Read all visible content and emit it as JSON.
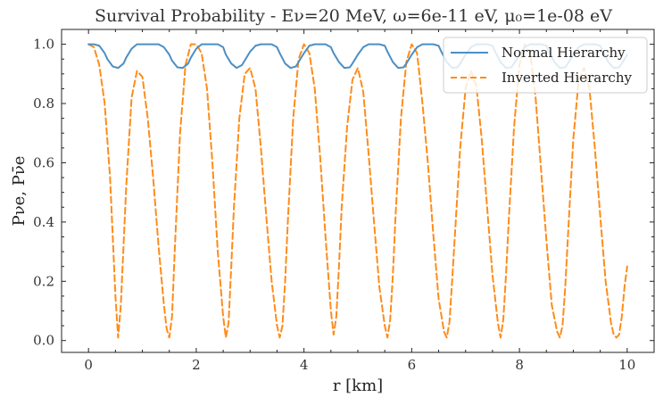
{
  "chart_data": {
    "type": "line",
    "title": "Survival Probability - Eν=20 MeV, ω=6e-11 eV, μ₀=1e-08 eV",
    "xlabel": "r [km]",
    "ylabel": "Pνe, Pν̄e",
    "xlim": [
      -0.5,
      10.5
    ],
    "ylim": [
      -0.04,
      1.05
    ],
    "xticks": [
      "0",
      "2",
      "4",
      "6",
      "8",
      "10"
    ],
    "yticks": [
      "0.0",
      "0.2",
      "0.4",
      "0.6",
      "0.8",
      "1.0"
    ],
    "grid": false,
    "legend_position": "top-right",
    "series": [
      {
        "name": "Normal Hierarchy",
        "color": "#4c8fc4",
        "style": "solid",
        "x": [
          0.0,
          0.1,
          0.2,
          0.3,
          0.35,
          0.45,
          0.55,
          0.65,
          0.7,
          0.8,
          0.9,
          1.0,
          1.1,
          1.2,
          1.3,
          1.4,
          1.5,
          1.55,
          1.65,
          1.75,
          1.85,
          1.9,
          2.0,
          2.1,
          2.2,
          2.3,
          2.4,
          2.5,
          2.55,
          2.65,
          2.75,
          2.85,
          2.9,
          3.0,
          3.1,
          3.2,
          3.3,
          3.4,
          3.5,
          3.55,
          3.65,
          3.75,
          3.85,
          3.9,
          4.0,
          4.1,
          4.2,
          4.3,
          4.4,
          4.5,
          4.55,
          4.65,
          4.75,
          4.85,
          4.9,
          5.0,
          5.1,
          5.2,
          5.3,
          5.4,
          5.5,
          5.55,
          5.65,
          5.75,
          5.85,
          5.9,
          6.0,
          6.1,
          6.2,
          6.3,
          6.4,
          6.5,
          6.55,
          6.65,
          6.75,
          6.85,
          6.9,
          7.0,
          7.1,
          7.2,
          7.3,
          7.4,
          7.5,
          7.55,
          7.65,
          7.75,
          7.85,
          7.9,
          8.0,
          8.1,
          8.2,
          8.3,
          8.4,
          8.5,
          8.55,
          8.65,
          8.75,
          8.85,
          8.9,
          9.0,
          9.1,
          9.2,
          9.3,
          9.4,
          9.5,
          9.55,
          9.65,
          9.75,
          9.85,
          9.9,
          10.0
        ],
        "y": [
          1.0,
          1.0,
          0.995,
          0.97,
          0.95,
          0.925,
          0.92,
          0.935,
          0.955,
          0.985,
          1.0,
          1.0,
          1.0,
          1.0,
          1.0,
          0.99,
          0.965,
          0.945,
          0.922,
          0.92,
          0.935,
          0.955,
          0.985,
          1.0,
          1.0,
          1.0,
          1.0,
          0.99,
          0.965,
          0.935,
          0.92,
          0.93,
          0.945,
          0.975,
          0.995,
          1.0,
          1.0,
          1.0,
          0.99,
          0.97,
          0.935,
          0.92,
          0.925,
          0.94,
          0.97,
          0.995,
          1.0,
          1.0,
          1.0,
          0.99,
          0.97,
          0.94,
          0.92,
          0.922,
          0.935,
          0.965,
          0.99,
          1.0,
          1.0,
          1.0,
          0.995,
          0.975,
          0.94,
          0.92,
          0.922,
          0.935,
          0.965,
          0.99,
          1.0,
          1.0,
          1.0,
          0.995,
          0.975,
          0.94,
          0.92,
          0.922,
          0.935,
          0.965,
          0.99,
          1.0,
          1.0,
          1.0,
          0.995,
          0.975,
          0.94,
          0.92,
          0.922,
          0.935,
          0.965,
          0.99,
          1.0,
          1.0,
          1.0,
          0.995,
          0.975,
          0.94,
          0.92,
          0.922,
          0.935,
          0.965,
          0.99,
          1.0,
          1.0,
          1.0,
          0.995,
          0.975,
          0.94,
          0.92,
          0.922,
          0.935,
          0.965
        ]
      },
      {
        "name": "Inverted Hierarchy",
        "color": "#ff8c1a",
        "style": "dashed",
        "x": [
          0.0,
          0.1,
          0.2,
          0.3,
          0.4,
          0.45,
          0.5,
          0.55,
          0.6,
          0.7,
          0.8,
          0.9,
          1.0,
          1.1,
          1.2,
          1.3,
          1.4,
          1.45,
          1.5,
          1.55,
          1.6,
          1.7,
          1.8,
          1.9,
          2.0,
          2.1,
          2.2,
          2.3,
          2.4,
          2.5,
          2.55,
          2.6,
          2.65,
          2.7,
          2.8,
          2.9,
          3.0,
          3.1,
          3.2,
          3.3,
          3.4,
          3.5,
          3.55,
          3.6,
          3.65,
          3.7,
          3.8,
          3.9,
          4.0,
          4.1,
          4.2,
          4.3,
          4.4,
          4.5,
          4.55,
          4.6,
          4.65,
          4.7,
          4.8,
          4.9,
          5.0,
          5.1,
          5.2,
          5.3,
          5.4,
          5.5,
          5.55,
          5.6,
          5.65,
          5.7,
          5.8,
          5.9,
          6.0,
          6.1,
          6.2,
          6.3,
          6.4,
          6.5,
          6.6,
          6.65,
          6.7,
          6.75,
          6.8,
          6.9,
          7.0,
          7.1,
          7.2,
          7.3,
          7.4,
          7.5,
          7.6,
          7.65,
          7.7,
          7.75,
          7.8,
          7.9,
          8.0,
          8.1,
          8.2,
          8.3,
          8.4,
          8.5,
          8.6,
          8.7,
          8.75,
          8.8,
          8.85,
          8.9,
          9.0,
          9.1,
          9.2,
          9.3,
          9.4,
          9.5,
          9.6,
          9.7,
          9.75,
          9.8,
          9.85,
          9.9,
          9.95,
          10.0
        ],
        "y": [
          1.0,
          0.99,
          0.93,
          0.8,
          0.55,
          0.35,
          0.15,
          0.01,
          0.12,
          0.52,
          0.82,
          0.91,
          0.89,
          0.75,
          0.55,
          0.32,
          0.12,
          0.04,
          0.01,
          0.08,
          0.3,
          0.7,
          0.93,
          1.0,
          1.0,
          0.97,
          0.85,
          0.6,
          0.3,
          0.08,
          0.01,
          0.06,
          0.25,
          0.45,
          0.75,
          0.9,
          0.92,
          0.85,
          0.65,
          0.42,
          0.2,
          0.05,
          0.01,
          0.05,
          0.2,
          0.4,
          0.75,
          0.95,
          1.0,
          0.97,
          0.85,
          0.62,
          0.35,
          0.1,
          0.02,
          0.08,
          0.25,
          0.45,
          0.72,
          0.88,
          0.92,
          0.84,
          0.63,
          0.4,
          0.18,
          0.05,
          0.01,
          0.07,
          0.22,
          0.42,
          0.75,
          0.94,
          1.0,
          0.97,
          0.8,
          0.6,
          0.36,
          0.14,
          0.03,
          0.01,
          0.06,
          0.2,
          0.35,
          0.65,
          0.85,
          0.91,
          0.86,
          0.68,
          0.45,
          0.22,
          0.06,
          0.01,
          0.07,
          0.22,
          0.4,
          0.72,
          0.93,
          1.0,
          0.97,
          0.82,
          0.58,
          0.34,
          0.12,
          0.03,
          0.01,
          0.05,
          0.18,
          0.35,
          0.68,
          0.88,
          0.92,
          0.85,
          0.65,
          0.42,
          0.2,
          0.06,
          0.02,
          0.01,
          0.02,
          0.08,
          0.18,
          0.25
        ]
      }
    ]
  }
}
